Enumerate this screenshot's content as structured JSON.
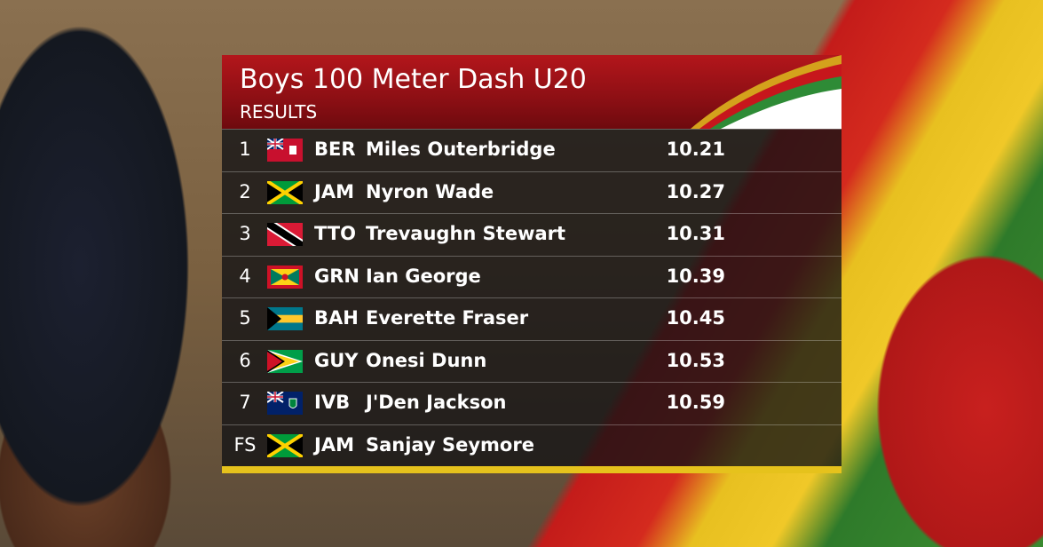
{
  "header": {
    "title": "Boys 100 Meter Dash U20",
    "subtitle": "RESULTS"
  },
  "table": {
    "rows": [
      [
        "1",
        "BER",
        "Miles Outerbridge",
        "10.21"
      ],
      [
        "2",
        "JAM",
        "Nyron Wade",
        "10.27"
      ],
      [
        "3",
        "TTO",
        "Trevaughn Stewart",
        "10.31"
      ],
      [
        "4",
        "GRN",
        "Ian George",
        "10.39"
      ],
      [
        "5",
        "BAH",
        "Everette Fraser",
        "10.45"
      ],
      [
        "6",
        "GUY",
        "Onesi Dunn",
        "10.53"
      ],
      [
        "7",
        "IVB",
        "J'Den Jackson",
        "10.59"
      ],
      [
        "FS",
        "JAM",
        "Sanjay Seymore",
        null
      ]
    ]
  }
}
